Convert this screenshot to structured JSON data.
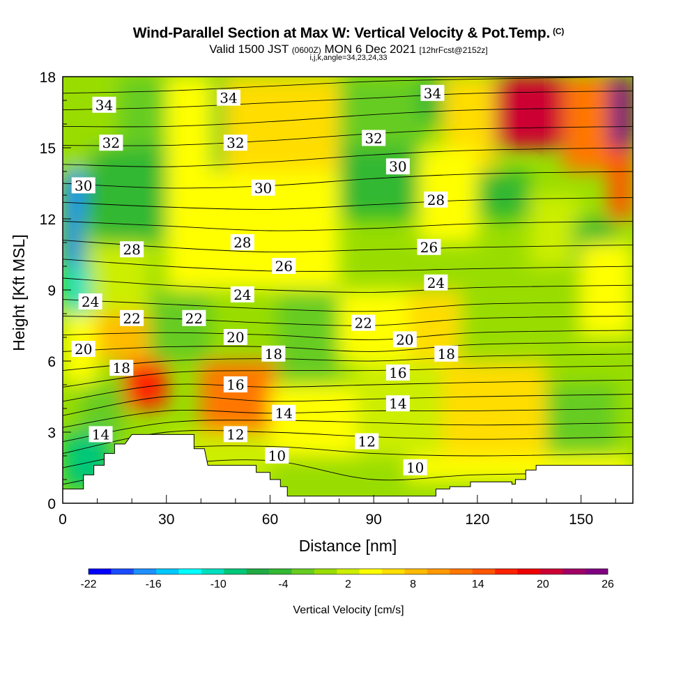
{
  "header": {
    "title": "Wind-Parallel Section at Max W: Vertical Velocity & Pot.Temp.",
    "copyright": "(C)",
    "subtitle_a": "Valid 1500 JST",
    "subtitle_b": "(0600Z)",
    "subtitle_c": "MON 6 Dec 2021",
    "subtitle_d": "[12hrFcst@2152z]",
    "params": "i,j,k,angle=34,23,24,33"
  },
  "chart_data": {
    "type": "heatmap",
    "title": "Wind-Parallel Section at Max W: Vertical Velocity & Pot.Temp.",
    "xlabel": "Distance [nm]",
    "ylabel": "Height [Kft MSL]",
    "xlim": [
      0,
      165
    ],
    "ylim": [
      0,
      18
    ],
    "x_ticks": [
      "0",
      "30",
      "60",
      "90",
      "120",
      "150"
    ],
    "y_ticks": [
      "0",
      "3",
      "6",
      "9",
      "12",
      "15",
      "18"
    ],
    "colorbar": {
      "label": "Vertical Velocity [cm/s]",
      "tick_labels": [
        "-22",
        "-16",
        "-10",
        "-4",
        "2",
        "8",
        "14",
        "20",
        "26"
      ],
      "colors": [
        "#0000ff",
        "#1a4cff",
        "#1e90ff",
        "#00c8ff",
        "#00ffff",
        "#00e0c0",
        "#00c878",
        "#22aa44",
        "#33b833",
        "#66cc22",
        "#99dd00",
        "#ccee00",
        "#ffff00",
        "#ffdd00",
        "#ffbb00",
        "#ff9900",
        "#ff7700",
        "#ff5500",
        "#ff2200",
        "#ee0000",
        "#cc0033",
        "#a00066",
        "#800080"
      ]
    },
    "velocity_cells": [
      {
        "x0": 0,
        "x1": 6,
        "y0": 10,
        "y1": 14,
        "w": -18
      },
      {
        "x0": 0,
        "x1": 8,
        "y0": 8,
        "y1": 10,
        "w": -12
      },
      {
        "x0": 6,
        "x1": 12,
        "y0": 12,
        "y1": 14,
        "w": -8
      },
      {
        "x0": 0,
        "x1": 14,
        "y0": 14,
        "y1": 18,
        "w": -2
      },
      {
        "x0": 8,
        "x1": 30,
        "y0": 11,
        "y1": 15,
        "w": -5
      },
      {
        "x0": 16,
        "x1": 30,
        "y0": 15,
        "y1": 18,
        "w": -3
      },
      {
        "x0": 30,
        "x1": 45,
        "y0": 9,
        "y1": 18,
        "w": 3
      },
      {
        "x0": 43,
        "x1": 47,
        "y0": 14,
        "y1": 18,
        "w": -4
      },
      {
        "x0": 47,
        "x1": 80,
        "y0": 14,
        "y1": 18,
        "w": 4
      },
      {
        "x0": 80,
        "x1": 105,
        "y0": 15,
        "y1": 18,
        "w": -3
      },
      {
        "x0": 103,
        "x1": 110,
        "y0": 16,
        "y1": 18,
        "w": -6
      },
      {
        "x0": 110,
        "x1": 125,
        "y0": 14,
        "y1": 18,
        "w": 5
      },
      {
        "x0": 125,
        "x1": 145,
        "y0": 15,
        "y1": 18,
        "w": 18
      },
      {
        "x0": 145,
        "x1": 158,
        "y0": 14,
        "y1": 18,
        "w": 10
      },
      {
        "x0": 158,
        "x1": 165,
        "y0": 15,
        "y1": 18,
        "w": 22
      },
      {
        "x0": 158,
        "x1": 165,
        "y0": 12,
        "y1": 15,
        "w": 12
      },
      {
        "x0": 80,
        "x1": 103,
        "y0": 12,
        "y1": 15,
        "w": -5
      },
      {
        "x0": 103,
        "x1": 120,
        "y0": 11,
        "y1": 15,
        "w": 2
      },
      {
        "x0": 120,
        "x1": 135,
        "y0": 12,
        "y1": 14,
        "w": -5
      },
      {
        "x0": 135,
        "x1": 150,
        "y0": 10,
        "y1": 13,
        "w": 1
      },
      {
        "x0": 148,
        "x1": 160,
        "y0": 10,
        "y1": 12,
        "w": -6
      },
      {
        "x0": 45,
        "x1": 80,
        "y0": 9,
        "y1": 14,
        "w": 3
      },
      {
        "x0": 8,
        "x1": 25,
        "y0": 8,
        "y1": 11,
        "w": 0
      },
      {
        "x0": 25,
        "x1": 43,
        "y0": 6,
        "y1": 9,
        "w": -4
      },
      {
        "x0": 0,
        "x1": 10,
        "y0": 5,
        "y1": 8,
        "w": 3
      },
      {
        "x0": 10,
        "x1": 25,
        "y0": 6,
        "y1": 8,
        "w": 6
      },
      {
        "x0": 18,
        "x1": 30,
        "y0": 4,
        "y1": 6,
        "w": 15
      },
      {
        "x0": 5,
        "x1": 18,
        "y0": 3,
        "y1": 5,
        "w": -4
      },
      {
        "x0": 0,
        "x1": 14,
        "y0": 0.6,
        "y1": 3,
        "w": -10
      },
      {
        "x0": 40,
        "x1": 62,
        "y0": 3,
        "y1": 6,
        "w": 11
      },
      {
        "x0": 62,
        "x1": 80,
        "y0": 5,
        "y1": 9,
        "w": -3
      },
      {
        "x0": 80,
        "x1": 100,
        "y0": 6,
        "y1": 9,
        "w": 2
      },
      {
        "x0": 100,
        "x1": 115,
        "y0": 6,
        "y1": 9,
        "w": 5
      },
      {
        "x0": 115,
        "x1": 150,
        "y0": 7,
        "y1": 10,
        "w": -1
      },
      {
        "x0": 150,
        "x1": 165,
        "y0": 7,
        "y1": 11,
        "w": 3
      },
      {
        "x0": 60,
        "x1": 85,
        "y0": 2,
        "y1": 5,
        "w": 3
      },
      {
        "x0": 85,
        "x1": 110,
        "y0": 2,
        "y1": 6,
        "w": 1
      },
      {
        "x0": 110,
        "x1": 140,
        "y0": 2,
        "y1": 6,
        "w": 5
      },
      {
        "x0": 140,
        "x1": 160,
        "y0": 2,
        "y1": 5,
        "w": -4
      },
      {
        "x0": 30,
        "x1": 60,
        "y0": 1,
        "y1": 3,
        "w": 1
      },
      {
        "x0": 60,
        "x1": 100,
        "y0": 0.3,
        "y1": 2,
        "w": -2
      },
      {
        "x0": 100,
        "x1": 165,
        "y0": 0.9,
        "y1": 2,
        "w": 2
      }
    ],
    "theta_labels": [
      {
        "text": "34",
        "x": 12,
        "y": 16.8
      },
      {
        "text": "34",
        "x": 48,
        "y": 17.1
      },
      {
        "text": "34",
        "x": 107,
        "y": 17.3
      },
      {
        "text": "32",
        "x": 14,
        "y": 15.2
      },
      {
        "text": "32",
        "x": 50,
        "y": 15.2
      },
      {
        "text": "32",
        "x": 90,
        "y": 15.4
      },
      {
        "text": "30",
        "x": 6,
        "y": 13.4
      },
      {
        "text": "30",
        "x": 58,
        "y": 13.3
      },
      {
        "text": "30",
        "x": 97,
        "y": 14.2
      },
      {
        "text": "28",
        "x": 20,
        "y": 10.7
      },
      {
        "text": "28",
        "x": 52,
        "y": 11.0
      },
      {
        "text": "28",
        "x": 108,
        "y": 12.8
      },
      {
        "text": "26",
        "x": 64,
        "y": 10.0
      },
      {
        "text": "26",
        "x": 106,
        "y": 10.8
      },
      {
        "text": "24",
        "x": 8,
        "y": 8.5
      },
      {
        "text": "24",
        "x": 52,
        "y": 8.8
      },
      {
        "text": "24",
        "x": 108,
        "y": 9.3
      },
      {
        "text": "22",
        "x": 20,
        "y": 7.8
      },
      {
        "text": "22",
        "x": 38,
        "y": 7.8
      },
      {
        "text": "22",
        "x": 87,
        "y": 7.6
      },
      {
        "text": "20",
        "x": 6,
        "y": 6.5
      },
      {
        "text": "20",
        "x": 50,
        "y": 7.0
      },
      {
        "text": "20",
        "x": 99,
        "y": 6.9
      },
      {
        "text": "18",
        "x": 17,
        "y": 5.7
      },
      {
        "text": "18",
        "x": 61,
        "y": 6.3
      },
      {
        "text": "18",
        "x": 111,
        "y": 6.3
      },
      {
        "text": "16",
        "x": 50,
        "y": 5.0
      },
      {
        "text": "16",
        "x": 97,
        "y": 5.5
      },
      {
        "text": "14",
        "x": 11,
        "y": 2.9
      },
      {
        "text": "14",
        "x": 64,
        "y": 3.8
      },
      {
        "text": "14",
        "x": 97,
        "y": 4.2
      },
      {
        "text": "12",
        "x": 50,
        "y": 2.9
      },
      {
        "text": "12",
        "x": 88,
        "y": 2.6
      },
      {
        "text": "10",
        "x": 62,
        "y": 2.0
      },
      {
        "text": "10",
        "x": 102,
        "y": 1.5
      }
    ],
    "theta_lines": [
      [
        [
          0,
          0.8
        ],
        [
          30,
          1.6
        ],
        [
          60,
          1.8
        ],
        [
          90,
          1.0
        ],
        [
          120,
          1.2
        ],
        [
          165,
          1.3
        ]
      ],
      [
        [
          0,
          1.5
        ],
        [
          30,
          2.3
        ],
        [
          60,
          2.4
        ],
        [
          90,
          2.1
        ],
        [
          120,
          2.0
        ],
        [
          165,
          2.1
        ]
      ],
      [
        [
          0,
          2.1
        ],
        [
          30,
          3.0
        ],
        [
          60,
          3.0
        ],
        [
          90,
          2.8
        ],
        [
          120,
          2.7
        ],
        [
          165,
          2.8
        ]
      ],
      [
        [
          0,
          2.6
        ],
        [
          30,
          3.4
        ],
        [
          60,
          3.5
        ],
        [
          90,
          3.4
        ],
        [
          120,
          3.3
        ],
        [
          165,
          3.4
        ]
      ],
      [
        [
          0,
          3.2
        ],
        [
          30,
          3.9
        ],
        [
          60,
          3.8
        ],
        [
          90,
          3.9
        ],
        [
          120,
          3.9
        ],
        [
          165,
          4.0
        ]
      ],
      [
        [
          0,
          3.7
        ],
        [
          30,
          4.5
        ],
        [
          60,
          4.3
        ],
        [
          90,
          4.4
        ],
        [
          120,
          4.5
        ],
        [
          165,
          4.6
        ]
      ],
      [
        [
          0,
          4.3
        ],
        [
          30,
          5.0
        ],
        [
          60,
          4.9
        ],
        [
          90,
          5.0
        ],
        [
          120,
          5.1
        ],
        [
          165,
          5.2
        ]
      ],
      [
        [
          0,
          4.9
        ],
        [
          30,
          5.5
        ],
        [
          60,
          5.6
        ],
        [
          90,
          5.6
        ],
        [
          120,
          5.7
        ],
        [
          165,
          5.8
        ]
      ],
      [
        [
          0,
          5.6
        ],
        [
          30,
          6.0
        ],
        [
          60,
          6.1
        ],
        [
          90,
          6.0
        ],
        [
          120,
          6.2
        ],
        [
          165,
          6.3
        ]
      ],
      [
        [
          0,
          6.4
        ],
        [
          30,
          6.6
        ],
        [
          60,
          6.6
        ],
        [
          90,
          6.4
        ],
        [
          120,
          6.7
        ],
        [
          165,
          6.8
        ]
      ],
      [
        [
          0,
          7.1
        ],
        [
          30,
          7.2
        ],
        [
          60,
          7.1
        ],
        [
          90,
          6.9
        ],
        [
          120,
          7.2
        ],
        [
          165,
          7.3
        ]
      ],
      [
        [
          0,
          7.9
        ],
        [
          30,
          7.8
        ],
        [
          60,
          7.6
        ],
        [
          90,
          7.5
        ],
        [
          120,
          7.8
        ],
        [
          165,
          7.9
        ]
      ],
      [
        [
          0,
          8.6
        ],
        [
          30,
          8.4
        ],
        [
          60,
          8.2
        ],
        [
          90,
          8.1
        ],
        [
          120,
          8.4
        ],
        [
          165,
          8.5
        ]
      ],
      [
        [
          0,
          9.5
        ],
        [
          30,
          9.2
        ],
        [
          60,
          9.0
        ],
        [
          90,
          8.9
        ],
        [
          120,
          9.1
        ],
        [
          165,
          9.2
        ]
      ],
      [
        [
          0,
          10.3
        ],
        [
          30,
          10.0
        ],
        [
          60,
          9.8
        ],
        [
          90,
          9.8
        ],
        [
          120,
          9.9
        ],
        [
          165,
          10.0
        ]
      ],
      [
        [
          0,
          11.1
        ],
        [
          30,
          10.8
        ],
        [
          60,
          10.6
        ],
        [
          90,
          10.7
        ],
        [
          120,
          10.8
        ],
        [
          165,
          10.9
        ]
      ],
      [
        [
          0,
          11.9
        ],
        [
          30,
          11.7
        ],
        [
          60,
          11.5
        ],
        [
          90,
          11.6
        ],
        [
          120,
          11.8
        ],
        [
          165,
          11.9
        ]
      ],
      [
        [
          0,
          12.7
        ],
        [
          30,
          12.5
        ],
        [
          60,
          12.4
        ],
        [
          90,
          12.6
        ],
        [
          120,
          12.8
        ],
        [
          165,
          12.9
        ]
      ],
      [
        [
          0,
          13.5
        ],
        [
          30,
          13.3
        ],
        [
          60,
          13.4
        ],
        [
          90,
          13.7
        ],
        [
          120,
          13.9
        ],
        [
          165,
          14.0
        ]
      ],
      [
        [
          0,
          14.3
        ],
        [
          30,
          14.2
        ],
        [
          60,
          14.4
        ],
        [
          90,
          14.7
        ],
        [
          120,
          14.9
        ],
        [
          165,
          15.0
        ]
      ],
      [
        [
          0,
          15.1
        ],
        [
          30,
          15.1
        ],
        [
          60,
          15.3
        ],
        [
          90,
          15.6
        ],
        [
          120,
          15.8
        ],
        [
          165,
          15.9
        ]
      ],
      [
        [
          0,
          15.9
        ],
        [
          30,
          15.9
        ],
        [
          60,
          16.1
        ],
        [
          90,
          16.4
        ],
        [
          120,
          16.6
        ],
        [
          165,
          16.7
        ]
      ],
      [
        [
          0,
          16.6
        ],
        [
          30,
          16.7
        ],
        [
          60,
          16.9
        ],
        [
          90,
          17.1
        ],
        [
          120,
          17.3
        ],
        [
          165,
          17.4
        ]
      ],
      [
        [
          0,
          17.3
        ],
        [
          30,
          17.4
        ],
        [
          60,
          17.6
        ],
        [
          90,
          17.8
        ],
        [
          120,
          17.9
        ],
        [
          165,
          18.0
        ]
      ]
    ],
    "terrain": [
      [
        0,
        0
      ],
      [
        0,
        0.6
      ],
      [
        6,
        0.6
      ],
      [
        6,
        1.2
      ],
      [
        9,
        1.2
      ],
      [
        9,
        1.6
      ],
      [
        12,
        1.6
      ],
      [
        12,
        2.1
      ],
      [
        15,
        2.1
      ],
      [
        15,
        2.5
      ],
      [
        18,
        2.5
      ],
      [
        20,
        2.9
      ],
      [
        38,
        2.9
      ],
      [
        38,
        2.3
      ],
      [
        41,
        2.3
      ],
      [
        42,
        1.6
      ],
      [
        56,
        1.6
      ],
      [
        56,
        1.3
      ],
      [
        60,
        1.3
      ],
      [
        60,
        1.0
      ],
      [
        63,
        1.0
      ],
      [
        63,
        0.7
      ],
      [
        65,
        0.7
      ],
      [
        65,
        0.3
      ],
      [
        108,
        0.3
      ],
      [
        108,
        0.6
      ],
      [
        112,
        0.6
      ],
      [
        112,
        0.7
      ],
      [
        118,
        0.7
      ],
      [
        118,
        0.9
      ],
      [
        130,
        0.9
      ],
      [
        130,
        0.8
      ],
      [
        131,
        0.8
      ],
      [
        131,
        1.0
      ],
      [
        134,
        1.0
      ],
      [
        134,
        1.4
      ],
      [
        137,
        1.4
      ],
      [
        137,
        1.6
      ],
      [
        165,
        1.6
      ],
      [
        165,
        0
      ]
    ]
  }
}
